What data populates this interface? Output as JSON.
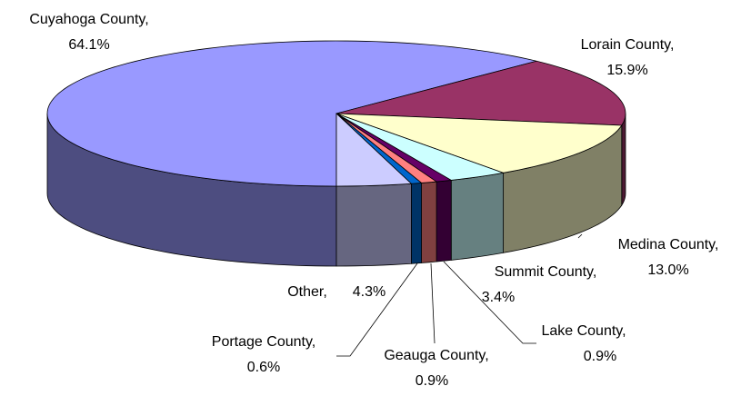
{
  "chart_data": {
    "type": "pie",
    "categories": [
      "Cuyahoga County,",
      "Lorain County,",
      "Medina County,",
      "Summit County,",
      "Lake County,",
      "Geauga County,",
      "Portage County,",
      "Other,"
    ],
    "values": [
      64.1,
      15.9,
      13.0,
      3.4,
      0.9,
      0.9,
      0.6,
      4.3
    ],
    "value_labels": [
      "64.1%",
      "15.9%",
      "13.0%",
      "3.4%",
      "0.9%",
      "0.9%",
      "0.6%",
      "4.3%"
    ],
    "colors": [
      "#9999ff",
      "#993366",
      "#ffffcc",
      "#ccffff",
      "#660066",
      "#ff8080",
      "#0066cc",
      "#ccccff"
    ]
  }
}
